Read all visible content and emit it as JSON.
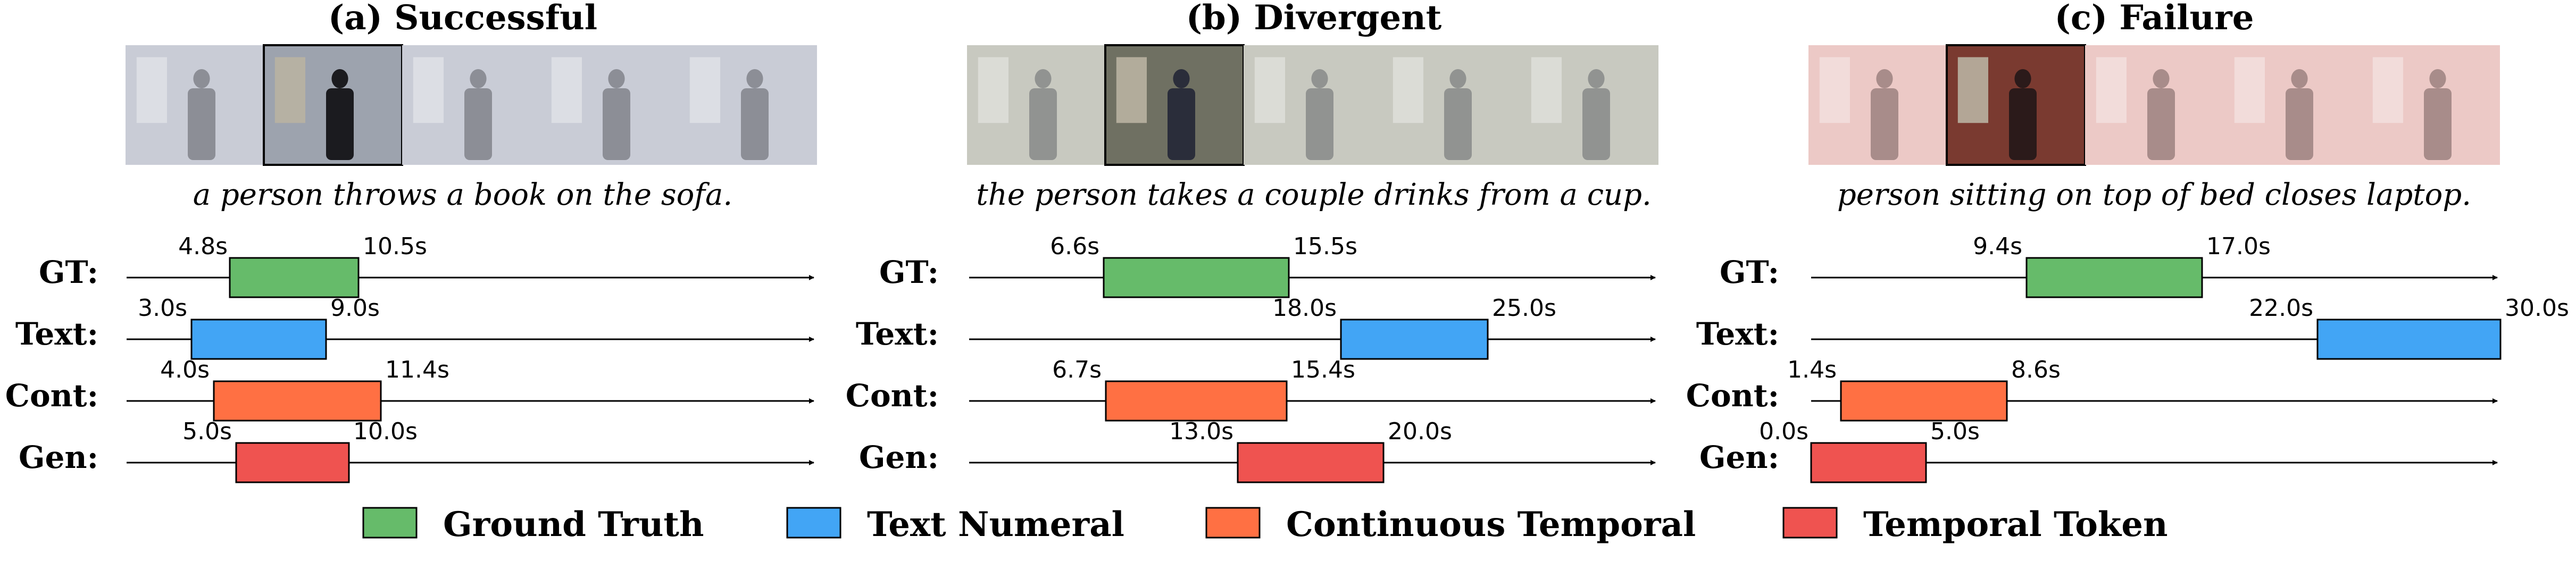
{
  "panels": [
    {
      "title": "(a) Successful",
      "caption": "a person throws a book on the sofa.",
      "frames": {
        "count": 5,
        "highlight_index": 1,
        "tint": "#c9ccd6",
        "scene": "#9da3ae",
        "figure": "#1b1b1f"
      },
      "rows": [
        {
          "label": "GT:",
          "start": "4.8s",
          "end": "10.5s",
          "series": "gt"
        },
        {
          "label": "Text:",
          "start": "3.0s",
          "end": "9.0s",
          "series": "text"
        },
        {
          "label": "Cont:",
          "start": "4.0s",
          "end": "11.4s",
          "series": "cont"
        },
        {
          "label": "Gen:",
          "start": "5.0s",
          "end": "10.0s",
          "series": "gen"
        }
      ]
    },
    {
      "title": "(b) Divergent",
      "caption": "the person takes a couple drinks from a cup.",
      "frames": {
        "count": 5,
        "highlight_index": 1,
        "tint": "#c8c9c0",
        "scene": "#6f7062",
        "figure": "#2a2d3a"
      },
      "rows": [
        {
          "label": "GT:",
          "start": "6.6s",
          "end": "15.5s",
          "series": "gt"
        },
        {
          "label": "Text:",
          "start": "18.0s",
          "end": "25.0s",
          "series": "text"
        },
        {
          "label": "Cont:",
          "start": "6.7s",
          "end": "15.4s",
          "series": "cont"
        },
        {
          "label": "Gen:",
          "start": "13.0s",
          "end": "20.0s",
          "series": "gen"
        }
      ]
    },
    {
      "title": "(c) Failure",
      "caption": "person sitting on top of bed closes laptop.",
      "frames": {
        "count": 5,
        "highlight_index": 1,
        "tint": "#ecc9c6",
        "scene": "#7a3a30",
        "figure": "#2b1a1a"
      },
      "rows": [
        {
          "label": "GT:",
          "start": "9.4s",
          "end": "17.0s",
          "series": "gt"
        },
        {
          "label": "Text:",
          "start": "22.0s",
          "end": "30.0s",
          "series": "text"
        },
        {
          "label": "Cont:",
          "start": "1.4s",
          "end": "8.6s",
          "series": "cont"
        },
        {
          "label": "Gen:",
          "start": "0.0s",
          "end": "5.0s",
          "series": "gen"
        }
      ]
    }
  ],
  "legend": [
    {
      "key": "gt",
      "label": "Ground Truth",
      "color": "#66bb6a"
    },
    {
      "key": "text",
      "label": "Text Numeral",
      "color": "#42a5f5"
    },
    {
      "key": "cont",
      "label": "Continuous Temporal",
      "color": "#ff7043"
    },
    {
      "key": "gen",
      "label": "Temporal Token",
      "color": "#ef5350"
    }
  ]
}
